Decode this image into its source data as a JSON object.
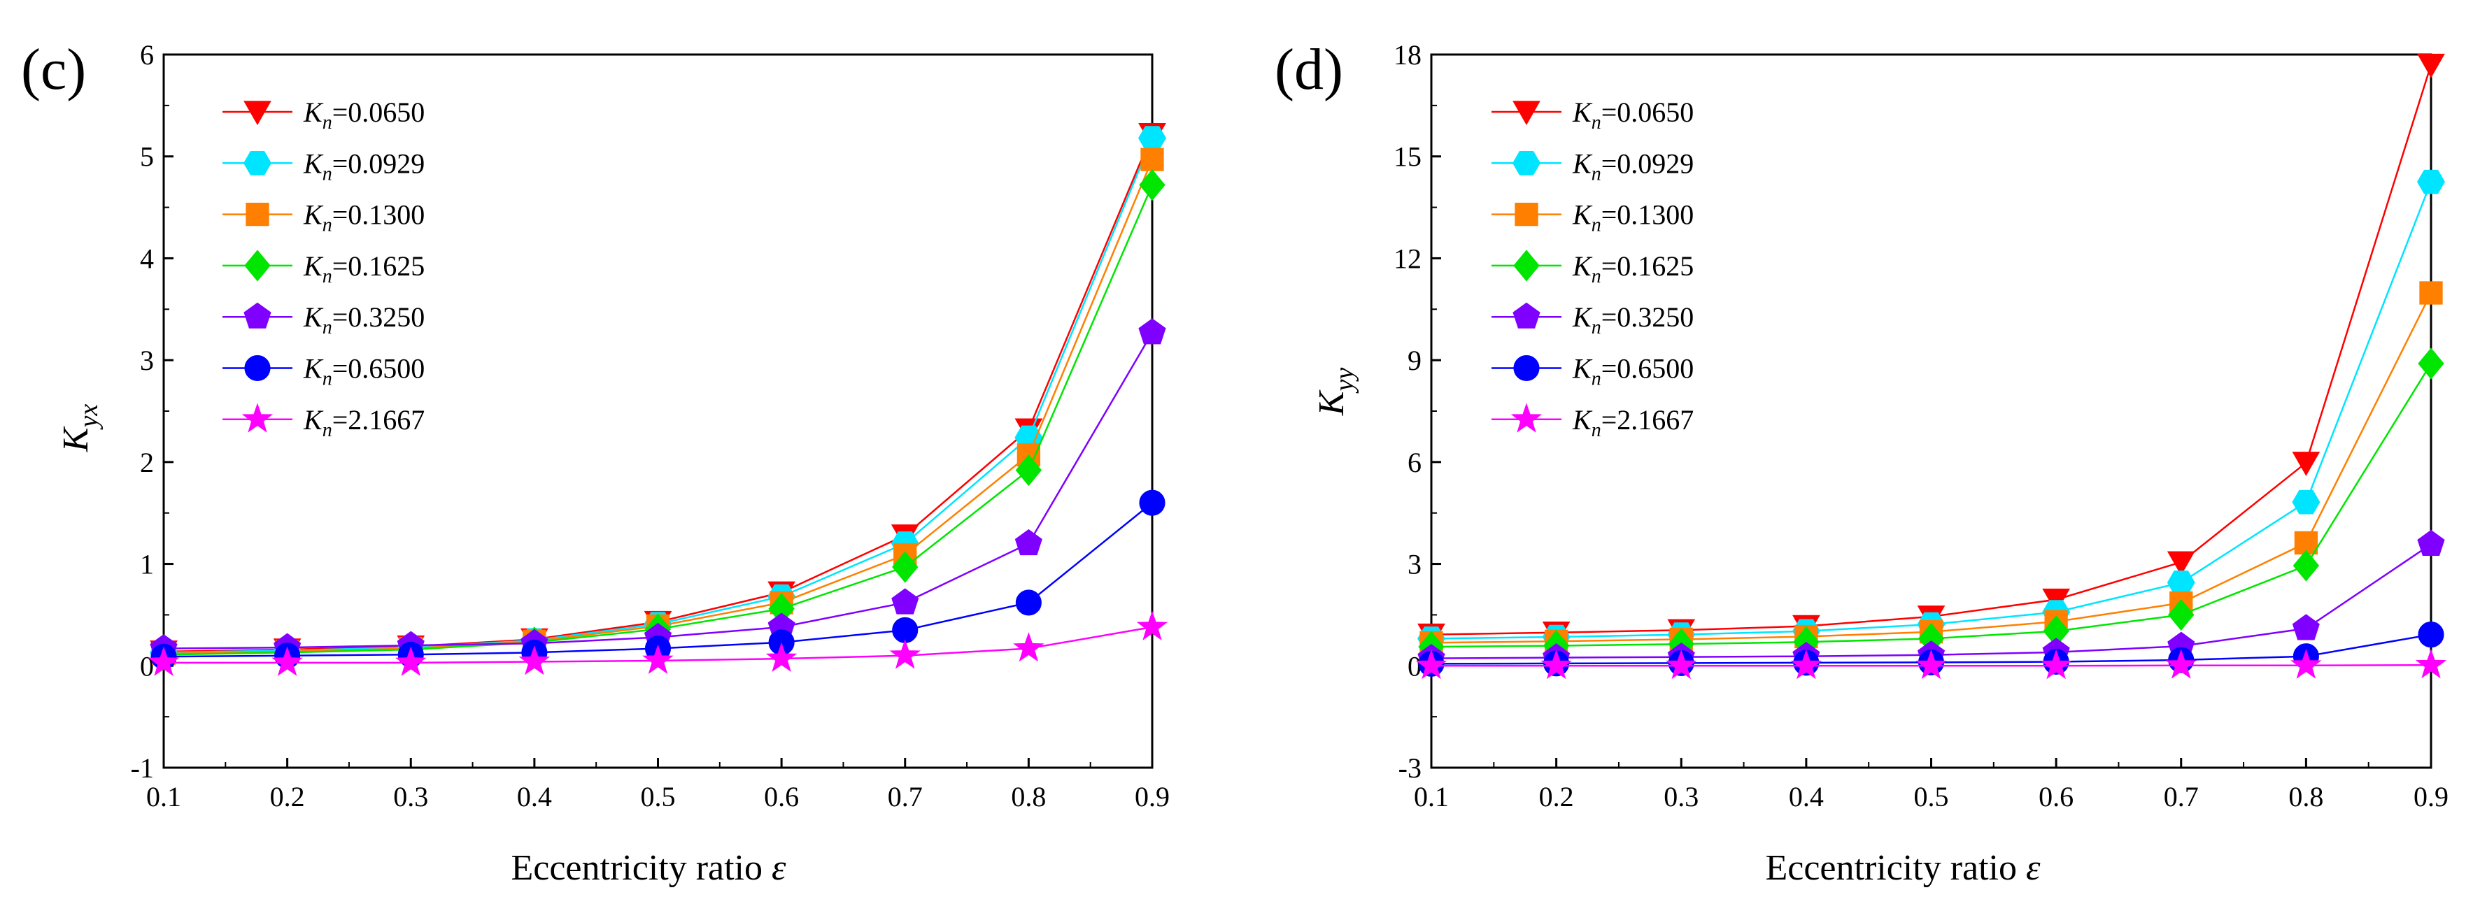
{
  "chart_data": [
    {
      "type": "line",
      "panel_label": "(c)",
      "xlabel_text": "Eccentricity ratio ",
      "xlabel_symbol": "ε",
      "ylabel_main": "K",
      "ylabel_sub": "yx",
      "x": [
        0.1,
        0.2,
        0.3,
        0.4,
        0.5,
        0.6,
        0.7,
        0.8,
        0.9
      ],
      "xlim": [
        0.1,
        0.9
      ],
      "ylim": [
        -1,
        6
      ],
      "xticks": [
        "0.1",
        "0.2",
        "0.3",
        "0.4",
        "0.5",
        "0.6",
        "0.7",
        "0.8",
        "0.9"
      ],
      "yticks": [
        "-1",
        "0",
        "1",
        "2",
        "3",
        "4",
        "5",
        "6"
      ],
      "legend_position": "top-left",
      "series": [
        {
          "name": "Kn=0.0650",
          "values": [
            0.14,
            0.16,
            0.19,
            0.26,
            0.43,
            0.72,
            1.28,
            2.32,
            5.22
          ]
        },
        {
          "name": "Kn=0.0929",
          "values": [
            0.13,
            0.15,
            0.18,
            0.25,
            0.41,
            0.68,
            1.2,
            2.24,
            5.18
          ]
        },
        {
          "name": "Kn=0.1300",
          "values": [
            0.12,
            0.14,
            0.17,
            0.24,
            0.39,
            0.62,
            1.09,
            2.07,
            4.97
          ]
        },
        {
          "name": "Kn=0.1625",
          "values": [
            0.11,
            0.13,
            0.16,
            0.23,
            0.36,
            0.56,
            0.97,
            1.92,
            4.72
          ]
        },
        {
          "name": "Kn=0.3250",
          "values": [
            0.17,
            0.18,
            0.2,
            0.22,
            0.28,
            0.38,
            0.62,
            1.2,
            3.27
          ]
        },
        {
          "name": "Kn=0.6500",
          "values": [
            0.09,
            0.1,
            0.11,
            0.13,
            0.17,
            0.23,
            0.35,
            0.62,
            1.6
          ]
        },
        {
          "name": "Kn=2.1667",
          "values": [
            0.03,
            0.03,
            0.03,
            0.04,
            0.05,
            0.07,
            0.1,
            0.17,
            0.38
          ]
        }
      ]
    },
    {
      "type": "line",
      "panel_label": "(d)",
      "xlabel_text": "Eccentricity ratio ",
      "xlabel_symbol": "ε",
      "ylabel_main": "K",
      "ylabel_sub": "yy",
      "x": [
        0.1,
        0.2,
        0.3,
        0.4,
        0.5,
        0.6,
        0.7,
        0.8,
        0.9
      ],
      "xlim": [
        0.1,
        0.9
      ],
      "ylim": [
        -3,
        18
      ],
      "xticks": [
        "0.1",
        "0.2",
        "0.3",
        "0.4",
        "0.5",
        "0.6",
        "0.7",
        "0.8",
        "0.9"
      ],
      "yticks": [
        "-3",
        "0",
        "3",
        "6",
        "9",
        "12",
        "15",
        "18"
      ],
      "legend_position": "top-left",
      "series": [
        {
          "name": "Kn=0.0650",
          "values": [
            0.92,
            0.98,
            1.05,
            1.17,
            1.45,
            1.95,
            3.05,
            5.98,
            17.7
          ]
        },
        {
          "name": "Kn=0.0929",
          "values": [
            0.8,
            0.85,
            0.92,
            1.02,
            1.22,
            1.58,
            2.45,
            4.82,
            14.25
          ]
        },
        {
          "name": "Kn=0.1300",
          "values": [
            0.68,
            0.72,
            0.78,
            0.86,
            1.0,
            1.3,
            1.85,
            3.62,
            10.98
          ]
        },
        {
          "name": "Kn=0.1625",
          "values": [
            0.56,
            0.59,
            0.64,
            0.7,
            0.8,
            1.02,
            1.5,
            2.95,
            8.9
          ]
        },
        {
          "name": "Kn=0.3250",
          "values": [
            0.22,
            0.24,
            0.26,
            0.28,
            0.32,
            0.4,
            0.58,
            1.1,
            3.58
          ]
        },
        {
          "name": "Kn=0.6500",
          "values": [
            0.06,
            0.07,
            0.08,
            0.09,
            0.1,
            0.12,
            0.17,
            0.28,
            0.92
          ]
        },
        {
          "name": "Kn=2.1667",
          "values": [
            0.0,
            0.0,
            0.0,
            0.0,
            0.0,
            0.0,
            0.01,
            0.01,
            0.02
          ]
        }
      ]
    }
  ],
  "legend_entries": [
    {
      "symbol": "K",
      "subscript": "n",
      "value": "=0.0650",
      "color": "#ff0000",
      "marker": "triangle-down"
    },
    {
      "symbol": "K",
      "subscript": "n",
      "value": "=0.0929",
      "color": "#00e5ff",
      "marker": "hexagon"
    },
    {
      "symbol": "K",
      "subscript": "n",
      "value": "=0.1300",
      "color": "#ff8000",
      "marker": "square"
    },
    {
      "symbol": "K",
      "subscript": "n",
      "value": "=0.1625",
      "color": "#00e600",
      "marker": "diamond"
    },
    {
      "symbol": "K",
      "subscript": "n",
      "value": "=0.3250",
      "color": "#8000ff",
      "marker": "pentagon"
    },
    {
      "symbol": "K",
      "subscript": "n",
      "value": "=0.6500",
      "color": "#0000ff",
      "marker": "circle"
    },
    {
      "symbol": "K",
      "subscript": "n",
      "value": "=2.1667",
      "color": "#ff00ff",
      "marker": "star"
    }
  ]
}
